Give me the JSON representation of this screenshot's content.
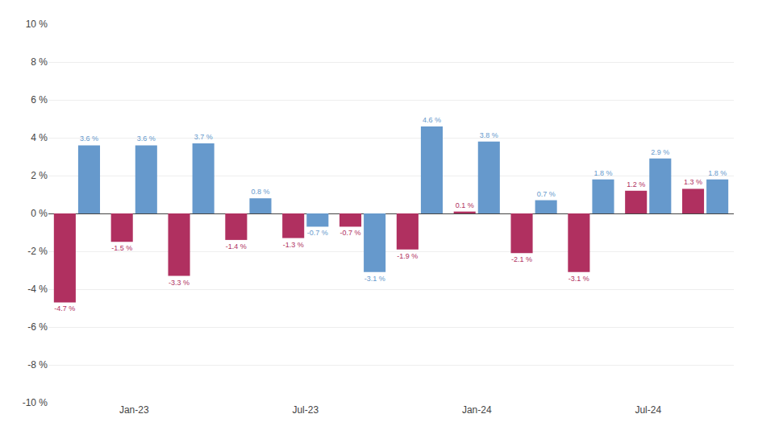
{
  "chart_data": {
    "type": "bar",
    "categories": [
      null,
      "Jan-23",
      null,
      null,
      "Jul-23",
      null,
      null,
      "Jan-24",
      null,
      null,
      "Jul-24",
      null
    ],
    "series": [
      {
        "color": "#b03060",
        "values": [
          -4.7,
          -1.5,
          -3.3,
          -1.4,
          -1.3,
          -0.7,
          -1.9,
          0.1,
          -2.1,
          -3.1,
          1.2,
          1.3
        ],
        "value_labels": [
          "-4.7 %",
          "-1.5 %",
          "-3.3 %",
          "-1.4 %",
          "-1.3 %",
          "-0.7 %",
          "-1.9 %",
          "0.1 %",
          "-2.1 %",
          "-3.1 %",
          "1.2 %",
          "1.3 %"
        ]
      },
      {
        "color": "#6699cc",
        "values": [
          3.6,
          3.6,
          3.7,
          0.8,
          -0.7,
          -3.1,
          4.6,
          3.8,
          0.7,
          1.8,
          2.9,
          1.8
        ],
        "value_labels": [
          "3.6 %",
          "3.6 %",
          "3.7 %",
          "0.8 %",
          "-0.7 %",
          "-3.1 %",
          "4.6 %",
          "3.8 %",
          "0.7 %",
          "1.8 %",
          "2.9 %",
          "1.8 %"
        ]
      }
    ],
    "ylim": [
      -10,
      10
    ],
    "yticks": [
      {
        "value": -10,
        "label": "-10 %"
      },
      {
        "value": -8,
        "label": "-8 %"
      },
      {
        "value": -6,
        "label": "-6 %"
      },
      {
        "value": -4,
        "label": "-4 %"
      },
      {
        "value": -2,
        "label": "-2 %"
      },
      {
        "value": 0,
        "label": "0 %"
      },
      {
        "value": 2,
        "label": "2 %"
      },
      {
        "value": 4,
        "label": "4 %"
      },
      {
        "value": 6,
        "label": "6 %"
      },
      {
        "value": 8,
        "label": "8 %"
      },
      {
        "value": 10,
        "label": "10 %"
      }
    ],
    "grid": true,
    "data_labels": true
  }
}
